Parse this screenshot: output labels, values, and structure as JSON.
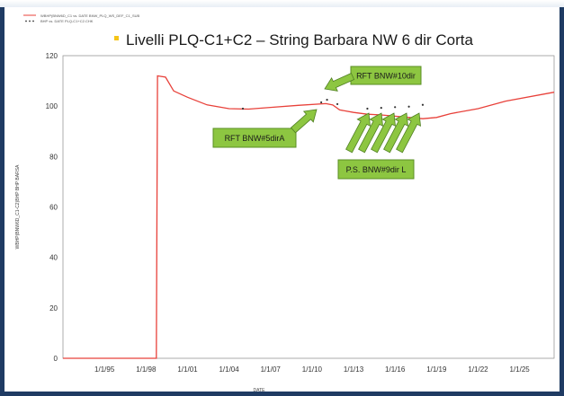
{
  "chart_data": {
    "type": "line",
    "title": "Livelli PLQ-C1+C2 – String Barbara NW 6 dir Corta",
    "title_bullet_color": "#f5c518",
    "xlabel": "DATE",
    "ylabel": "WBHP(BNW6D_C1-C2)BHP  BHP  BARSA",
    "legend": [
      "WBHP(BNW6D_C1 vs. DATE BNW_PLQ_WS_DEF_C1_SUB",
      "BHP vs. DATE PLQ-C1+C2.CHK"
    ],
    "x_tick_labels": [
      "1/1/95",
      "1/1/98",
      "1/1/01",
      "1/1/04",
      "1/1/07",
      "1/1/10",
      "1/1/13",
      "1/1/16",
      "1/1/19",
      "1/1/22",
      "1/1/25"
    ],
    "x_range": [
      "1992-01-01",
      "2027-07-01"
    ],
    "ylim": [
      0,
      120
    ],
    "y_ticks": [
      0,
      20,
      40,
      60,
      80,
      100,
      120
    ],
    "grid": true,
    "series": [
      {
        "color": "#e8413a",
        "points": [
          [
            "1992-01-01",
            0
          ],
          [
            "1998-10-01",
            0
          ],
          [
            "1998-11-01",
            112
          ],
          [
            "1999-06-01",
            111.5
          ],
          [
            "2000-01-01",
            106
          ],
          [
            "2001-01-01",
            103.5
          ],
          [
            "2002-06-01",
            100.5
          ],
          [
            "2004-01-01",
            99
          ],
          [
            "2005-06-01",
            98.8
          ],
          [
            "2007-01-01",
            99.5
          ],
          [
            "2009-01-01",
            100.3
          ],
          [
            "2011-01-01",
            101
          ],
          [
            "2011-07-01",
            100.5
          ],
          [
            "2012-01-01",
            98.5
          ],
          [
            "2013-01-01",
            97.5
          ],
          [
            "2014-01-01",
            96.8
          ],
          [
            "2015-01-01",
            96.5
          ],
          [
            "2016-01-01",
            96
          ],
          [
            "2017-01-01",
            95.5
          ],
          [
            "2018-01-01",
            95
          ],
          [
            "2019-01-01",
            95.5
          ],
          [
            "2020-01-01",
            97
          ],
          [
            "2022-01-01",
            99
          ],
          [
            "2024-01-01",
            102
          ],
          [
            "2027-07-01",
            105.5
          ]
        ]
      },
      {
        "marker": "dot",
        "color": "#333333",
        "points": [
          [
            "2005-01-01",
            99
          ],
          [
            "2010-09-01",
            101.5
          ],
          [
            "2011-02-01",
            102.5
          ],
          [
            "2011-11-01",
            100.8
          ],
          [
            "2014-01-01",
            99
          ],
          [
            "2015-01-01",
            99.3
          ],
          [
            "2016-01-01",
            99.6
          ],
          [
            "2017-01-01",
            99.8
          ],
          [
            "2018-01-01",
            100.5
          ]
        ]
      }
    ],
    "annotations": [
      {
        "text": "RFT BNW#10dir",
        "color": "#8dc641",
        "border": "#5a8f24"
      },
      {
        "text": "RFT BNW#5dirA",
        "color": "#8dc641",
        "border": "#5a8f24"
      },
      {
        "text": "P.S. BNW#9dir L",
        "color": "#8dc641",
        "border": "#5a8f24"
      }
    ],
    "colors": {
      "grid": "#c9c9c9",
      "frame": "#1f3b63",
      "arrow": "#8dc641",
      "arrow_border": "#4f7f22"
    }
  }
}
